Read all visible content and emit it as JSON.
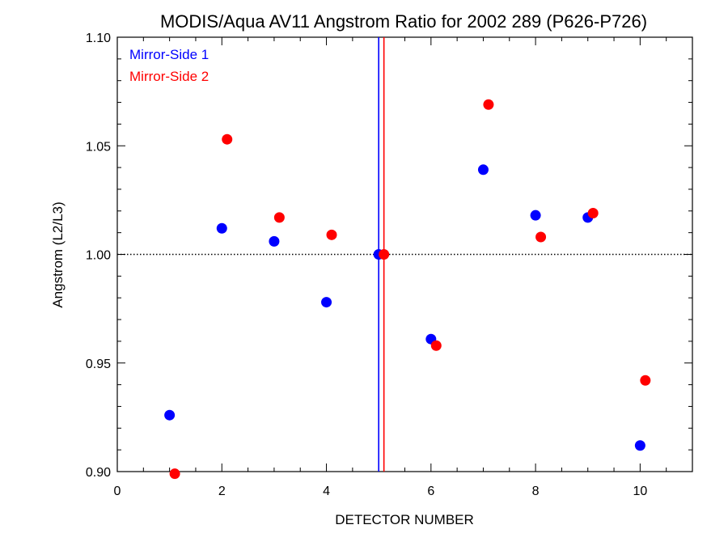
{
  "chart_data": {
    "type": "scatter",
    "title": "MODIS/Aqua AV11 Angstrom Ratio for 2002 289 (P626-P726)",
    "xlabel": "DETECTOR NUMBER",
    "ylabel": "Angstrom (L2/L3)",
    "xlim": [
      0,
      11
    ],
    "ylim": [
      0.9,
      1.1
    ],
    "xticks": [
      0,
      2,
      4,
      6,
      8,
      10
    ],
    "yticks": [
      0.9,
      0.95,
      1.0,
      1.05,
      1.1
    ],
    "xtick_labels": [
      "0",
      "2",
      "4",
      "6",
      "8",
      "10"
    ],
    "ytick_labels": [
      "0.90",
      "0.95",
      "1.00",
      "1.05",
      "1.10"
    ],
    "grid": false,
    "legend_placement": "top-left",
    "reference_lines": {
      "horizontal": {
        "y": 1.0,
        "style": "dotted",
        "color": "#000000"
      },
      "vertical": [
        {
          "x": 5.0,
          "color": "#0000ff"
        },
        {
          "x": 5.1,
          "color": "#ff0000"
        }
      ]
    },
    "series": [
      {
        "name": "Mirror-Side 1",
        "color": "#0000ff",
        "x": [
          1,
          2,
          3,
          4,
          5,
          6,
          7,
          8,
          9,
          10
        ],
        "y": [
          0.926,
          1.012,
          1.006,
          0.978,
          1.0,
          0.961,
          1.039,
          1.018,
          1.017,
          0.912
        ]
      },
      {
        "name": "Mirror-Side 2",
        "color": "#ff0000",
        "x": [
          1.1,
          2.1,
          3.1,
          4.1,
          5.1,
          6.1,
          7.1,
          8.1,
          9.1,
          10.1
        ],
        "y": [
          0.899,
          1.053,
          1.017,
          1.009,
          1.0,
          0.958,
          1.069,
          1.008,
          1.019,
          0.942
        ]
      }
    ]
  }
}
